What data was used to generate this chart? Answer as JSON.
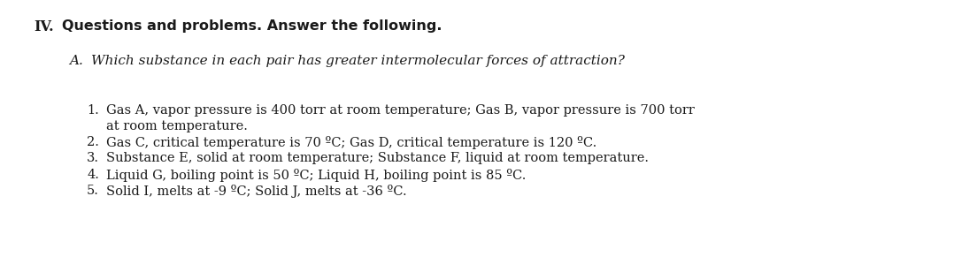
{
  "background_color": "#ffffff",
  "title_roman": "IV.",
  "title_bold": "Questions and problems. Answer the following.",
  "sub_label": "A.",
  "sub_italic": "Which substance in each pair has greater intermolecular forces of attraction?",
  "items": [
    {
      "num": "1.",
      "line1": "Gas A, vapor pressure is 400 torr at room temperature; Gas B, vapor pressure is 700 torr",
      "line2": "at room temperature."
    },
    {
      "num": "2.",
      "line1": "Gas C, critical temperature is 70 ºC; Gas D, critical temperature is 120 ºC.",
      "line2": null
    },
    {
      "num": "3.",
      "line1": "Substance E, solid at room temperature; Substance F, liquid at room temperature.",
      "line2": null
    },
    {
      "num": "4.",
      "line1": "Liquid G, boiling point is 50 ºC; Liquid H, boiling point is 85 ºC.",
      "line2": null
    },
    {
      "num": "5.",
      "line1": "Solid I, melts at -9 ºC; Solid J, melts at -36 ºC.",
      "line2": null
    }
  ],
  "title_fontsize": 11.5,
  "sub_fontsize": 11.0,
  "item_fontsize": 10.5,
  "text_color": "#1a1a1a"
}
